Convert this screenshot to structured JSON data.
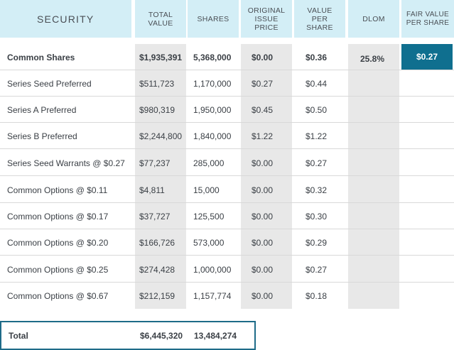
{
  "header": {
    "security": "SECURITY",
    "total_value": "TOTAL\nVALUE",
    "shares": "SHARES",
    "original_issue_price": "ORIGINAL\nISSUE\nPRICE",
    "value_per_share": "VALUE\nPER\nSHARE",
    "dlom": "DLOM",
    "fair_value_per_share": "FAIR VALUE\nPER SHARE"
  },
  "rows": [
    {
      "security": "Common Shares",
      "total_value": "$1,935,391",
      "shares": "5,368,000",
      "original_issue_price": "$0.00",
      "value_per_share": "$0.36",
      "dlom": "25.8%",
      "fair_value_per_share": "$0.27"
    },
    {
      "security": "Series Seed Preferred",
      "total_value": "$511,723",
      "shares": "1,170,000",
      "original_issue_price": "$0.27",
      "value_per_share": "$0.44"
    },
    {
      "security": "Series A Preferred",
      "total_value": "$980,319",
      "shares": "1,950,000",
      "original_issue_price": "$0.45",
      "value_per_share": "$0.50"
    },
    {
      "security": "Series B Preferred",
      "total_value": "$2,244,800",
      "shares": "1,840,000",
      "original_issue_price": "$1.22",
      "value_per_share": "$1.22"
    },
    {
      "security": "Series Seed Warrants @ $0.27",
      "total_value": "$77,237",
      "shares": "285,000",
      "original_issue_price": "$0.00",
      "value_per_share": "$0.27"
    },
    {
      "security": "Common Options @ $0.11",
      "total_value": "$4,811",
      "shares": "15,000",
      "original_issue_price": "$0.00",
      "value_per_share": "$0.32"
    },
    {
      "security": "Common Options @ $0.17",
      "total_value": "$37,727",
      "shares": "125,500",
      "original_issue_price": "$0.00",
      "value_per_share": "$0.30"
    },
    {
      "security": "Common Options @ $0.20",
      "total_value": "$166,726",
      "shares": "573,000",
      "original_issue_price": "$0.00",
      "value_per_share": "$0.29"
    },
    {
      "security": "Common Options @ $0.25",
      "total_value": "$274,428",
      "shares": "1,000,000",
      "original_issue_price": "$0.00",
      "value_per_share": "$0.27"
    },
    {
      "security": "Common Options @ $0.67",
      "total_value": "$212,159",
      "shares": "1,157,774",
      "original_issue_price": "$0.00",
      "value_per_share": "$0.18"
    }
  ],
  "total": {
    "label": "Total",
    "total_value": "$6,445,320",
    "shares": "13,484,274"
  },
  "colors": {
    "header_bg": "#d3eef6",
    "grey_col": "#e8e8e8",
    "accent": "#0f6f8f",
    "total_border": "#1e6b88"
  }
}
